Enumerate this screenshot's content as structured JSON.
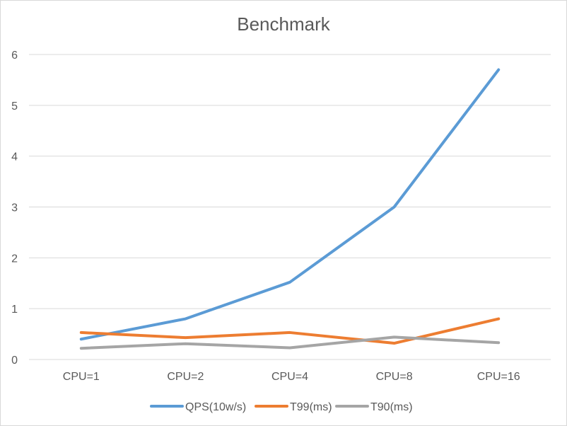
{
  "chart_data": {
    "type": "line",
    "title": "Benchmark",
    "xlabel": "",
    "ylabel": "",
    "categories": [
      "CPU=1",
      "CPU=2",
      "CPU=4",
      "CPU=8",
      "CPU=16"
    ],
    "ylim": [
      0,
      6
    ],
    "yticks": [
      "0",
      "1",
      "2",
      "3",
      "4",
      "5",
      "6"
    ],
    "grid": true,
    "legend_position": "bottom",
    "series": [
      {
        "name": "QPS(10w/s)",
        "color": "#5b9bd5",
        "values": [
          0.4,
          0.8,
          1.52,
          3.0,
          5.7
        ]
      },
      {
        "name": "T99(ms)",
        "color": "#ed7d31",
        "values": [
          0.53,
          0.43,
          0.53,
          0.32,
          0.8
        ]
      },
      {
        "name": "T90(ms)",
        "color": "#a5a5a5",
        "values": [
          0.22,
          0.31,
          0.23,
          0.44,
          0.33
        ]
      }
    ]
  }
}
